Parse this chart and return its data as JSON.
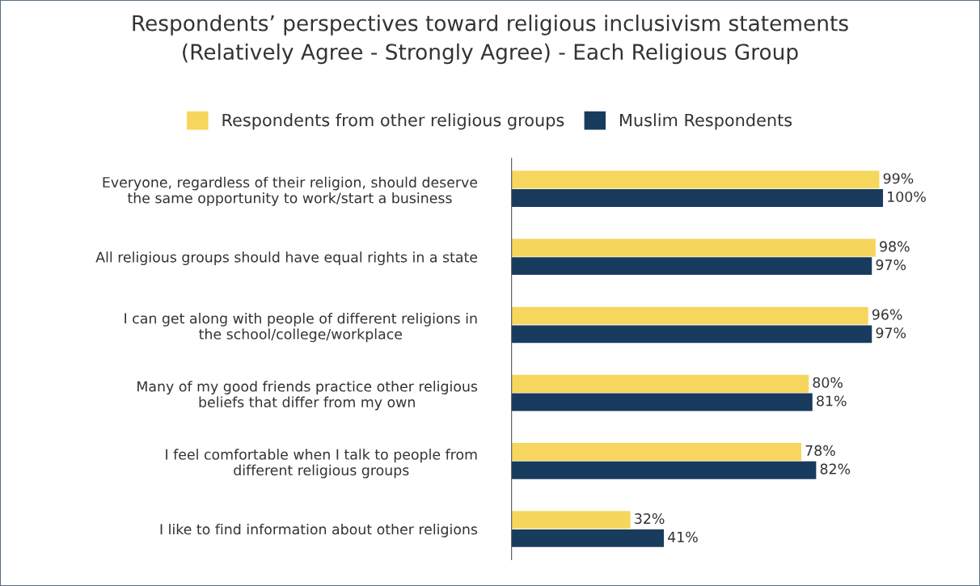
{
  "chart_data": {
    "type": "bar",
    "orientation": "horizontal",
    "title": "Respondents’ perspectives toward religious inclusivism statements\n(Relatively Agree - Strongly Agree) - Each Religious Group",
    "categories": [
      "Everyone, regardless of their religion, should deserve\nthe same opportunity to work/start a business",
      "All religious groups should have equal rights in a state",
      "I can get along with people of different religions in\nthe school/college/workplace",
      "Many of my good friends practice other religious\nbeliefs that differ from my own",
      "I feel comfortable when I talk to people from\ndifferent religious groups",
      "I like to find information about other religions"
    ],
    "series": [
      {
        "name": "Respondents from other religious groups",
        "color": "#f6d65c",
        "values": [
          99,
          98,
          96,
          80,
          78,
          32
        ],
        "value_labels": [
          "99%",
          "98%",
          "96%",
          "80%",
          "78%",
          "32%"
        ]
      },
      {
        "name": "Muslim Respondents",
        "color": "#183b5e",
        "values": [
          100,
          97,
          97,
          81,
          82,
          41
        ],
        "value_labels": [
          "100%",
          "97%",
          "97%",
          "81%",
          "82%",
          "41%"
        ]
      }
    ],
    "tick_labels": "y",
    "legend": "top",
    "grid": false
  }
}
